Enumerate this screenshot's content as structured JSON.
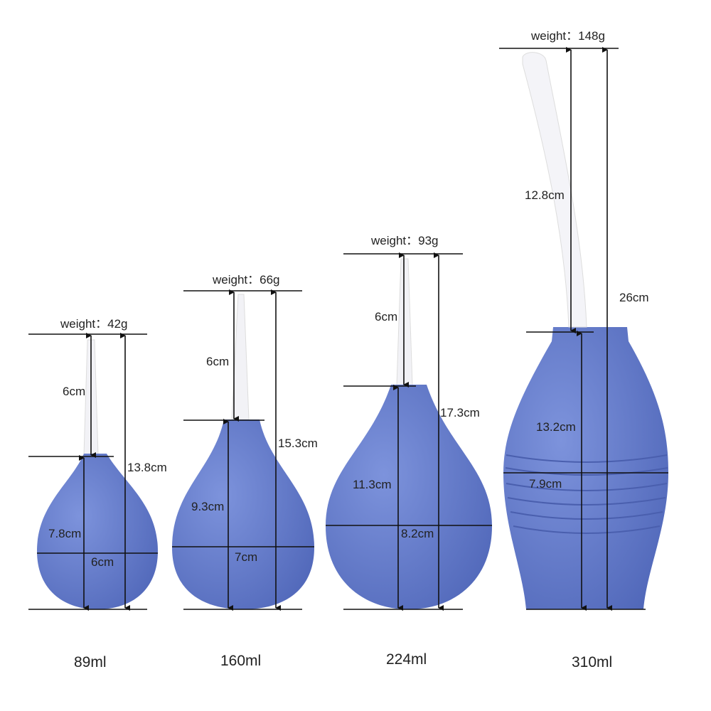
{
  "colors": {
    "bulb": "#5b72c4",
    "bulb_light": "#7d93dc",
    "nozzle": "#f2f2f6",
    "line": "#111111"
  },
  "products": [
    {
      "weight": "weight：42g",
      "nozzle": "6cm",
      "bulb_height": "7.8cm",
      "width": "6cm",
      "total": "13.8cm",
      "volume": "89ml"
    },
    {
      "weight": "weight：66g",
      "nozzle": "6cm",
      "bulb_height": "9.3cm",
      "width": "7cm",
      "total": "15.3cm",
      "volume": "160ml"
    },
    {
      "weight": "weight：93g",
      "nozzle": "6cm",
      "bulb_height": "11.3cm",
      "width": "8.2cm",
      "total": "17.3cm",
      "volume": "224ml"
    },
    {
      "weight": "weight：148g",
      "nozzle": "12.8cm",
      "bulb_height": "13.2cm",
      "width": "7.9cm",
      "total": "26cm",
      "volume": "310ml"
    }
  ]
}
